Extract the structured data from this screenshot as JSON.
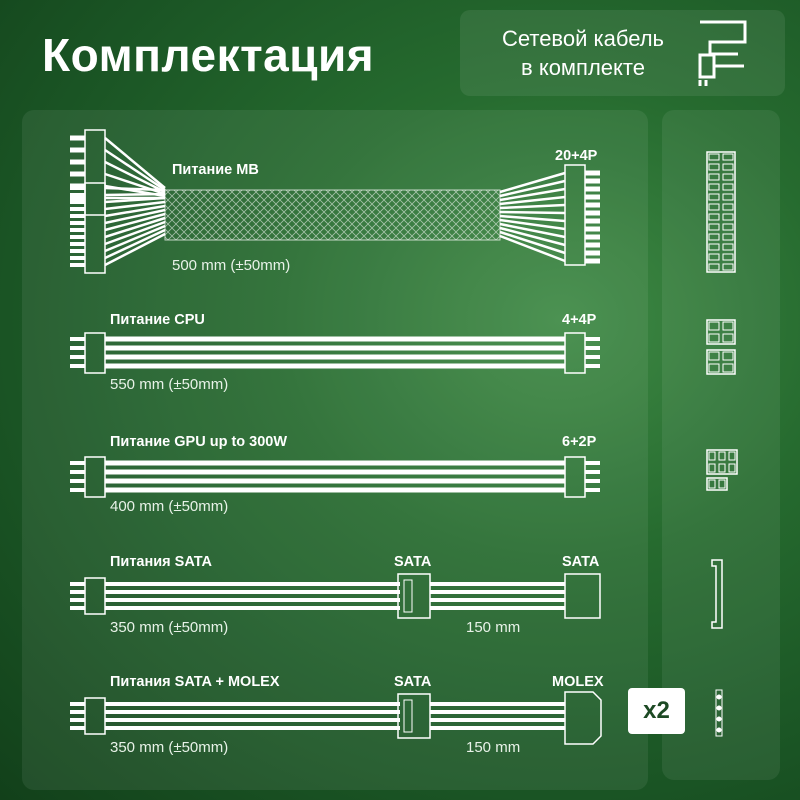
{
  "title": "Комплектация",
  "cable_note": {
    "line1": "Сетевой кабель",
    "line2": "в комплекте",
    "icon": "power-cable-icon"
  },
  "cables": [
    {
      "name": "Питание MB",
      "connector": "20+4P",
      "length": "500  mm (±50mm)"
    },
    {
      "name": "Питание CPU",
      "connector": "4+4P",
      "length": "550  mm (±50mm)"
    },
    {
      "name": "Питание GPU up to 300W",
      "connector": "6+2P",
      "length": "400  mm (±50mm)"
    },
    {
      "name": "Питания SATA",
      "mid_connector": "SATA",
      "connector": "SATA",
      "length": "350  mm (±50mm)",
      "length2": "150  mm"
    },
    {
      "name": "Питания SATA + MOLEX",
      "mid_connector": "SATA",
      "connector": "MOLEX",
      "length": "350  mm (±50mm)",
      "length2": "150  mm",
      "quantity": "x2"
    }
  ],
  "colors": {
    "background": "#1f5a2a",
    "text": "#ffffff",
    "badge_text": "#1d4a24"
  }
}
